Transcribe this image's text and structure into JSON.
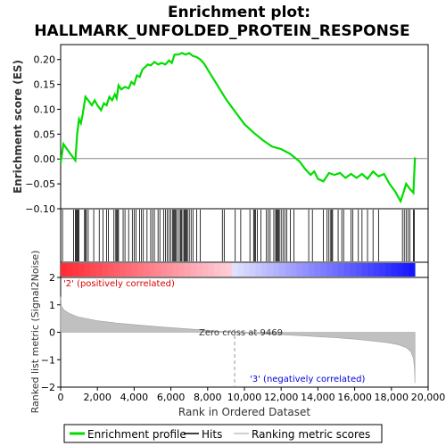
{
  "title_line1": "Enrichment plot:",
  "title_line2": "HALLMARK_UNFOLDED_PROTEIN_RESPONSE",
  "colors": {
    "es_line": "#00dd00",
    "hit_line": "#000000",
    "metric_fill": "#c0c0c0",
    "metric_stroke": "#a0a0a0",
    "pos_label": "#dd0000",
    "neg_label": "#0000dd",
    "zero_line": "#808080",
    "bar_pos": "#ff0000",
    "bar_neg": "#0000ff"
  },
  "chart_data": [
    {
      "type": "line",
      "name": "enrichment-score",
      "ylabel": "Enrichment score (ES)",
      "xlim": [
        0,
        20000
      ],
      "ylim": [
        -0.1,
        0.23
      ],
      "yticks": [
        -0.1,
        -0.05,
        0.0,
        0.05,
        0.1,
        0.15,
        0.2
      ],
      "ytick_labels": [
        "−0.10",
        "−0.05",
        "0.00",
        "0.05",
        "0.10",
        "0.15",
        "0.20"
      ],
      "grid": false,
      "points": [
        [
          0,
          -0.008
        ],
        [
          150,
          0.03
        ],
        [
          500,
          0.012
        ],
        [
          800,
          -0.003
        ],
        [
          900,
          0.05
        ],
        [
          1000,
          0.08
        ],
        [
          1100,
          0.072
        ],
        [
          1200,
          0.09
        ],
        [
          1350,
          0.125
        ],
        [
          1500,
          0.118
        ],
        [
          1700,
          0.108
        ],
        [
          1850,
          0.118
        ],
        [
          2000,
          0.108
        ],
        [
          2200,
          0.098
        ],
        [
          2350,
          0.112
        ],
        [
          2500,
          0.108
        ],
        [
          2650,
          0.125
        ],
        [
          2800,
          0.118
        ],
        [
          2950,
          0.13
        ],
        [
          3050,
          0.122
        ],
        [
          3150,
          0.148
        ],
        [
          3300,
          0.14
        ],
        [
          3500,
          0.145
        ],
        [
          3700,
          0.142
        ],
        [
          3850,
          0.155
        ],
        [
          4000,
          0.15
        ],
        [
          4150,
          0.168
        ],
        [
          4300,
          0.165
        ],
        [
          4450,
          0.18
        ],
        [
          4600,
          0.185
        ],
        [
          4750,
          0.19
        ],
        [
          4900,
          0.188
        ],
        [
          5100,
          0.195
        ],
        [
          5300,
          0.19
        ],
        [
          5500,
          0.193
        ],
        [
          5700,
          0.19
        ],
        [
          5900,
          0.198
        ],
        [
          6050,
          0.193
        ],
        [
          6200,
          0.21
        ],
        [
          6400,
          0.21
        ],
        [
          6600,
          0.213
        ],
        [
          6800,
          0.21
        ],
        [
          7000,
          0.213
        ],
        [
          7200,
          0.207
        ],
        [
          7400,
          0.205
        ],
        [
          7600,
          0.2
        ],
        [
          7800,
          0.192
        ],
        [
          8000,
          0.18
        ],
        [
          8500,
          0.15
        ],
        [
          9000,
          0.12
        ],
        [
          9500,
          0.095
        ],
        [
          10000,
          0.07
        ],
        [
          10500,
          0.053
        ],
        [
          11000,
          0.038
        ],
        [
          11500,
          0.025
        ],
        [
          12000,
          0.02
        ],
        [
          12500,
          0.01
        ],
        [
          13000,
          -0.005
        ],
        [
          13300,
          -0.02
        ],
        [
          13600,
          -0.032
        ],
        [
          13800,
          -0.025
        ],
        [
          14000,
          -0.04
        ],
        [
          14300,
          -0.045
        ],
        [
          14600,
          -0.028
        ],
        [
          14900,
          -0.032
        ],
        [
          15200,
          -0.028
        ],
        [
          15500,
          -0.038
        ],
        [
          15800,
          -0.03
        ],
        [
          16100,
          -0.038
        ],
        [
          16400,
          -0.03
        ],
        [
          16700,
          -0.04
        ],
        [
          17000,
          -0.025
        ],
        [
          17300,
          -0.035
        ],
        [
          17600,
          -0.03
        ],
        [
          17900,
          -0.05
        ],
        [
          18200,
          -0.065
        ],
        [
          18500,
          -0.085
        ],
        [
          18650,
          -0.068
        ],
        [
          18800,
          -0.05
        ],
        [
          19000,
          -0.06
        ],
        [
          19200,
          -0.068
        ],
        [
          19280,
          0.003
        ]
      ]
    },
    {
      "type": "scatter",
      "name": "hits",
      "ylabel": "",
      "positions": [
        100,
        700,
        800,
        850,
        900,
        950,
        1000,
        1300,
        1350,
        1400,
        1500,
        1800,
        2100,
        2300,
        2500,
        2600,
        2900,
        3000,
        3050,
        3100,
        3150,
        3400,
        3500,
        3700,
        3900,
        4000,
        4100,
        4300,
        4400,
        4500,
        4700,
        4900,
        5000,
        5100,
        5300,
        5400,
        5600,
        5700,
        5800,
        5900,
        6000,
        6100,
        6150,
        6200,
        6250,
        6300,
        6400,
        6500,
        6550,
        6600,
        6700,
        6750,
        6800,
        6850,
        6900,
        7000,
        7100,
        7200,
        7400,
        7600,
        8800,
        8900,
        9500,
        9800,
        10300,
        10500,
        10550,
        10600,
        10700,
        10900,
        11200,
        11300,
        11400,
        11600,
        11700,
        11750,
        11800,
        11850,
        11900,
        12000,
        12100,
        12200,
        12300,
        12500,
        12700,
        13500,
        13700,
        14300,
        14500,
        14600,
        14700,
        14750,
        14800,
        15100,
        15300,
        15400,
        15800,
        15900,
        16200,
        16400,
        16700,
        17000,
        17300,
        18600,
        18700,
        18800,
        18900,
        19000,
        19200,
        19250
      ]
    },
    {
      "type": "area",
      "name": "ranked-metric",
      "xlabel": "Rank in Ordered Dataset",
      "ylabel": "Ranked list metric (Signal2Noise)",
      "xlim": [
        0,
        20000
      ],
      "ylim": [
        -2,
        2
      ],
      "xticks": [
        0,
        2000,
        4000,
        6000,
        8000,
        10000,
        12000,
        14000,
        16000,
        18000,
        20000
      ],
      "xtick_labels": [
        "0",
        "2,000",
        "4,000",
        "6,000",
        "8,000",
        "10,000",
        "12,000",
        "14,000",
        "16,000",
        "18,000",
        "20,000"
      ],
      "yticks": [
        -2,
        -1,
        0,
        1,
        2
      ],
      "ytick_labels": [
        "−2",
        "−1",
        "0",
        "1",
        "2"
      ],
      "points": [
        [
          0,
          1.3
        ],
        [
          50,
          0.95
        ],
        [
          200,
          0.8
        ],
        [
          500,
          0.68
        ],
        [
          1000,
          0.55
        ],
        [
          2000,
          0.42
        ],
        [
          3000,
          0.34
        ],
        [
          4000,
          0.28
        ],
        [
          5000,
          0.22
        ],
        [
          6000,
          0.17
        ],
        [
          7000,
          0.12
        ],
        [
          8000,
          0.07
        ],
        [
          9000,
          0.02
        ],
        [
          9469,
          0.0
        ],
        [
          10000,
          -0.03
        ],
        [
          11000,
          -0.06
        ],
        [
          12000,
          -0.09
        ],
        [
          13000,
          -0.12
        ],
        [
          14000,
          -0.16
        ],
        [
          15000,
          -0.2
        ],
        [
          16000,
          -0.25
        ],
        [
          17000,
          -0.32
        ],
        [
          17800,
          -0.38
        ],
        [
          18400,
          -0.46
        ],
        [
          18800,
          -0.56
        ],
        [
          19050,
          -0.7
        ],
        [
          19200,
          -0.95
        ],
        [
          19250,
          -1.3
        ],
        [
          19280,
          -1.85
        ]
      ],
      "zero_cross": 9469,
      "annotations": {
        "zero_cross": "Zero cross at 9469",
        "positive": "'2' (positively correlated)",
        "negative": "'3' (negatively correlated)"
      }
    }
  ],
  "legend": {
    "placement": "bottom",
    "items": [
      {
        "label": "Enrichment profile",
        "color": "#00dd00"
      },
      {
        "label": "Hits",
        "color": "#000000"
      },
      {
        "label": "Ranking metric scores",
        "color": "#c0c0c0"
      }
    ]
  }
}
